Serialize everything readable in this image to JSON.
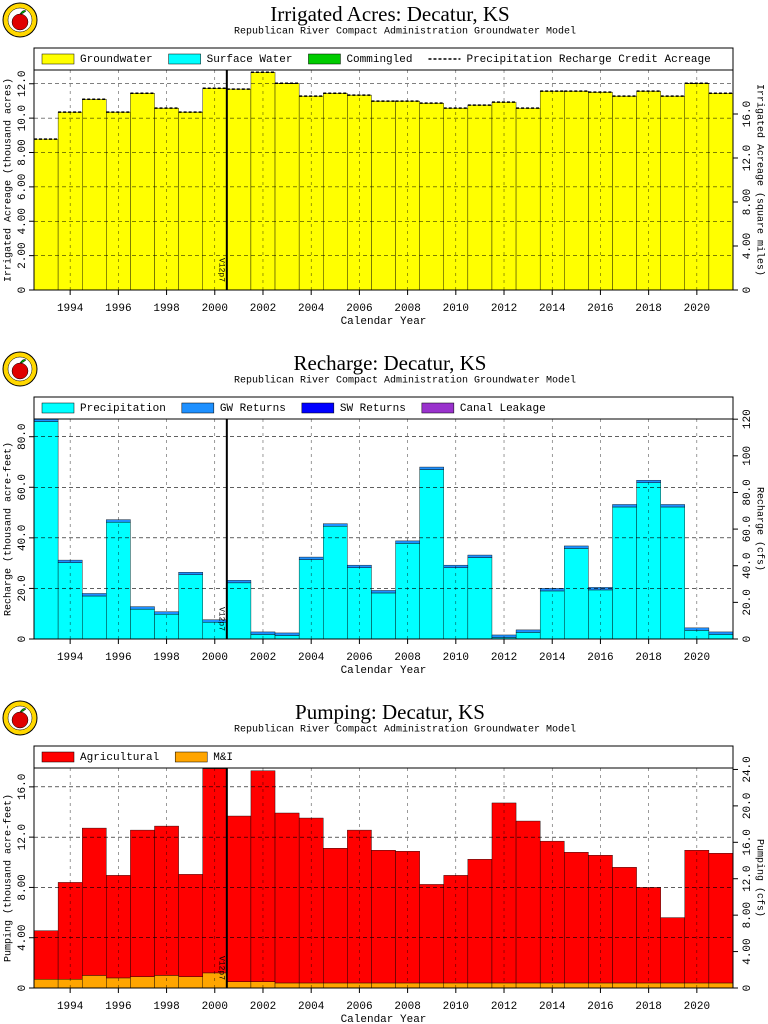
{
  "chart_data": [
    {
      "type": "bar",
      "stacked": true,
      "title": "Irrigated Acres: Decatur, KS",
      "subtitle": "Republican River Compact Administration Groundwater Model",
      "x_label": "Calendar Year",
      "y_label": "Irrigated Acreage (thousand acres)",
      "y2_label": "Irrigated Acreage (square miles)",
      "x": [
        1993,
        1994,
        1995,
        1996,
        1997,
        1998,
        1999,
        2000,
        2001,
        2002,
        2003,
        2004,
        2005,
        2006,
        2007,
        2008,
        2009,
        2010,
        2011,
        2012,
        2013,
        2014,
        2015,
        2016,
        2017,
        2018,
        2019,
        2020,
        2021
      ],
      "xlim": [
        1992.5,
        2021.5
      ],
      "xticks": [
        1994,
        1996,
        1998,
        2000,
        2002,
        2004,
        2006,
        2008,
        2010,
        2012,
        2014,
        2016,
        2018,
        2020
      ],
      "ylim": [
        0,
        12.8
      ],
      "yticks": [
        0,
        {
          "value": 2,
          "label": "2.00"
        },
        {
          "value": 4,
          "label": "4.00"
        },
        {
          "value": 6,
          "label": "6.00"
        },
        {
          "value": 8,
          "label": "8.00"
        },
        {
          "value": 10,
          "label": "10.0"
        },
        {
          "value": 12,
          "label": "12.0"
        }
      ],
      "y2lim": [
        0,
        20
      ],
      "y2ticks": [
        0,
        {
          "value": 4,
          "label": "4.00"
        },
        {
          "value": 8,
          "label": "8.00"
        },
        {
          "value": 12,
          "label": "12.0"
        },
        {
          "value": 16,
          "label": "16.0"
        }
      ],
      "grid": true,
      "annotations": [
        {
          "x": 2000.5,
          "text": "V12p7"
        }
      ],
      "series": [
        {
          "name": "Groundwater",
          "color": "#ffff00",
          "values": [
            8.78,
            10.35,
            11.1,
            10.35,
            11.45,
            10.58,
            10.35,
            11.74,
            11.69,
            12.67,
            12.03,
            11.28,
            11.45,
            11.34,
            10.99,
            10.99,
            10.87,
            10.58,
            10.76,
            10.93,
            10.58,
            11.57,
            11.57,
            11.51,
            11.28,
            11.57,
            11.28,
            12.03,
            11.45
          ]
        },
        {
          "name": "Surface Water",
          "color": "#00ffff",
          "values": [
            0,
            0,
            0,
            0,
            0,
            0,
            0,
            0,
            0,
            0,
            0,
            0,
            0,
            0,
            0,
            0,
            0,
            0,
            0,
            0,
            0,
            0,
            0,
            0,
            0,
            0,
            0,
            0,
            0
          ]
        },
        {
          "name": "Commingled",
          "color": "#00cc00",
          "values": [
            0,
            0,
            0,
            0,
            0,
            0,
            0,
            0,
            0,
            0,
            0,
            0,
            0,
            0,
            0,
            0,
            0,
            0,
            0,
            0,
            0,
            0,
            0,
            0,
            0,
            0,
            0,
            0,
            0
          ]
        },
        {
          "name": "Precipitation Recharge Credit Acreage",
          "color": "#000000",
          "mark": "dashed-step",
          "values": [
            8.78,
            10.35,
            11.1,
            10.35,
            11.45,
            10.58,
            10.35,
            11.74,
            11.69,
            12.67,
            12.03,
            11.28,
            11.45,
            11.34,
            10.99,
            10.99,
            10.87,
            10.58,
            10.76,
            10.93,
            10.58,
            11.57,
            11.57,
            11.51,
            11.28,
            11.57,
            11.28,
            12.03,
            11.45
          ]
        }
      ]
    },
    {
      "type": "bar",
      "stacked": true,
      "title": "Recharge: Decatur, KS",
      "subtitle": "Republican River Compact Administration Groundwater Model",
      "x_label": "Calendar Year",
      "y_label": "Recharge (thousand acre-feet)",
      "y2_label": "Recharge (cfs)",
      "x": [
        1993,
        1994,
        1995,
        1996,
        1997,
        1998,
        1999,
        2000,
        2001,
        2002,
        2003,
        2004,
        2005,
        2006,
        2007,
        2008,
        2009,
        2010,
        2011,
        2012,
        2013,
        2014,
        2015,
        2016,
        2017,
        2018,
        2019,
        2020,
        2021
      ],
      "xlim": [
        1992.5,
        2021.5
      ],
      "xticks": [
        1994,
        1996,
        1998,
        2000,
        2002,
        2004,
        2006,
        2008,
        2010,
        2012,
        2014,
        2016,
        2018,
        2020
      ],
      "ylim": [
        0,
        87
      ],
      "yticks": [
        0,
        {
          "value": 20,
          "label": "20.0"
        },
        {
          "value": 40,
          "label": "40.0"
        },
        {
          "value": 60,
          "label": "60.0"
        },
        {
          "value": 80,
          "label": "80.0"
        }
      ],
      "y2lim": [
        0,
        120.1
      ],
      "y2ticks": [
        0,
        {
          "value": 20,
          "label": "20.0"
        },
        {
          "value": 40,
          "label": "40.0"
        },
        {
          "value": 60,
          "label": "60.0"
        },
        {
          "value": 80,
          "label": "80.0"
        },
        100,
        120
      ],
      "grid": true,
      "annotations": [
        {
          "x": 2000.5,
          "text": "V12p7"
        }
      ],
      "series": [
        {
          "name": "Precipitation",
          "color": "#00ffff",
          "values": [
            86,
            30.2,
            17,
            46.2,
            11.8,
            9.8,
            25.4,
            6.6,
            22.2,
            1.8,
            1.4,
            31.4,
            44.6,
            28.2,
            18.2,
            37.8,
            67,
            28.2,
            32.2,
            0.6,
            2.6,
            19,
            35.8,
            19.4,
            52.2,
            61.8,
            52.2,
            3.4,
            1.8
          ]
        },
        {
          "name": "GW Returns",
          "color": "#1e90ff",
          "values": [
            1,
            1,
            1,
            1,
            1,
            1,
            1,
            1,
            1,
            1,
            1,
            1,
            1,
            1,
            1,
            1,
            1,
            1,
            1,
            1,
            1,
            1,
            1,
            1,
            1,
            1,
            1,
            1,
            1
          ]
        },
        {
          "name": "SW Returns",
          "color": "#0000ff",
          "values": [
            0,
            0,
            0,
            0,
            0,
            0,
            0,
            0,
            0,
            0,
            0,
            0,
            0,
            0,
            0,
            0,
            0,
            0,
            0,
            0,
            0,
            0,
            0,
            0,
            0,
            0,
            0,
            0,
            0
          ]
        },
        {
          "name": "Canal Leakage",
          "color": "#9932cc",
          "values": [
            0,
            0,
            0,
            0,
            0,
            0,
            0,
            0,
            0,
            0,
            0,
            0,
            0,
            0,
            0,
            0,
            0,
            0,
            0,
            0,
            0,
            0,
            0,
            0,
            0,
            0,
            0,
            0,
            0
          ]
        }
      ]
    },
    {
      "type": "bar",
      "stacked": true,
      "title": "Pumping: Decatur, KS",
      "subtitle": "Republican River Compact Administration Groundwater Model",
      "x_label": "Calendar Year",
      "y_label": "Pumping (thousand acre-feet)",
      "y2_label": "Pumping (cfs)",
      "x": [
        1993,
        1994,
        1995,
        1996,
        1997,
        1998,
        1999,
        2000,
        2001,
        2002,
        2003,
        2004,
        2005,
        2006,
        2007,
        2008,
        2009,
        2010,
        2011,
        2012,
        2013,
        2014,
        2015,
        2016,
        2017,
        2018,
        2019,
        2020,
        2021
      ],
      "xlim": [
        1992.5,
        2021.5
      ],
      "xticks": [
        1994,
        1996,
        1998,
        2000,
        2002,
        2004,
        2006,
        2008,
        2010,
        2012,
        2014,
        2016,
        2018,
        2020
      ],
      "ylim": [
        0,
        17.5
      ],
      "yticks": [
        0,
        {
          "value": 4,
          "label": "4.00"
        },
        {
          "value": 8,
          "label": "8.00"
        },
        {
          "value": 12,
          "label": "12.0"
        },
        {
          "value": 16,
          "label": "16.0"
        }
      ],
      "y2lim": [
        0,
        24.16
      ],
      "y2ticks": [
        0,
        {
          "value": 4,
          "label": "4.00"
        },
        {
          "value": 8,
          "label": "8.00"
        },
        {
          "value": 12,
          "label": "12.0"
        },
        {
          "value": 16,
          "label": "16.0"
        },
        {
          "value": 20,
          "label": "20.0"
        },
        {
          "value": 24,
          "label": "24.0"
        }
      ],
      "grid": true,
      "annotations": [
        {
          "x": 2000.5,
          "text": "V12p7"
        }
      ],
      "series": [
        {
          "name": "M&I",
          "color": "#ffa500",
          "legend_order": 1,
          "values": [
            0.7,
            0.7,
            1.0,
            0.8,
            0.9,
            1.0,
            0.9,
            1.2,
            0.5,
            0.5,
            0.4,
            0.4,
            0.4,
            0.4,
            0.4,
            0.4,
            0.4,
            0.4,
            0.4,
            0.4,
            0.4,
            0.4,
            0.4,
            0.4,
            0.4,
            0.4,
            0.4,
            0.4,
            0.4
          ]
        },
        {
          "name": "Agricultural",
          "color": "#ff0000",
          "legend_order": 0,
          "values": [
            3.86,
            7.7,
            11.72,
            8.16,
            11.66,
            11.88,
            8.14,
            16.24,
            13.18,
            16.78,
            13.52,
            13.12,
            10.72,
            12.16,
            10.56,
            10.48,
            7.84,
            8.56,
            9.84,
            14.32,
            12.88,
            11.28,
            10.4,
            10.16,
            9.2,
            7.6,
            5.2,
            10.56,
            10.32
          ]
        }
      ]
    }
  ]
}
